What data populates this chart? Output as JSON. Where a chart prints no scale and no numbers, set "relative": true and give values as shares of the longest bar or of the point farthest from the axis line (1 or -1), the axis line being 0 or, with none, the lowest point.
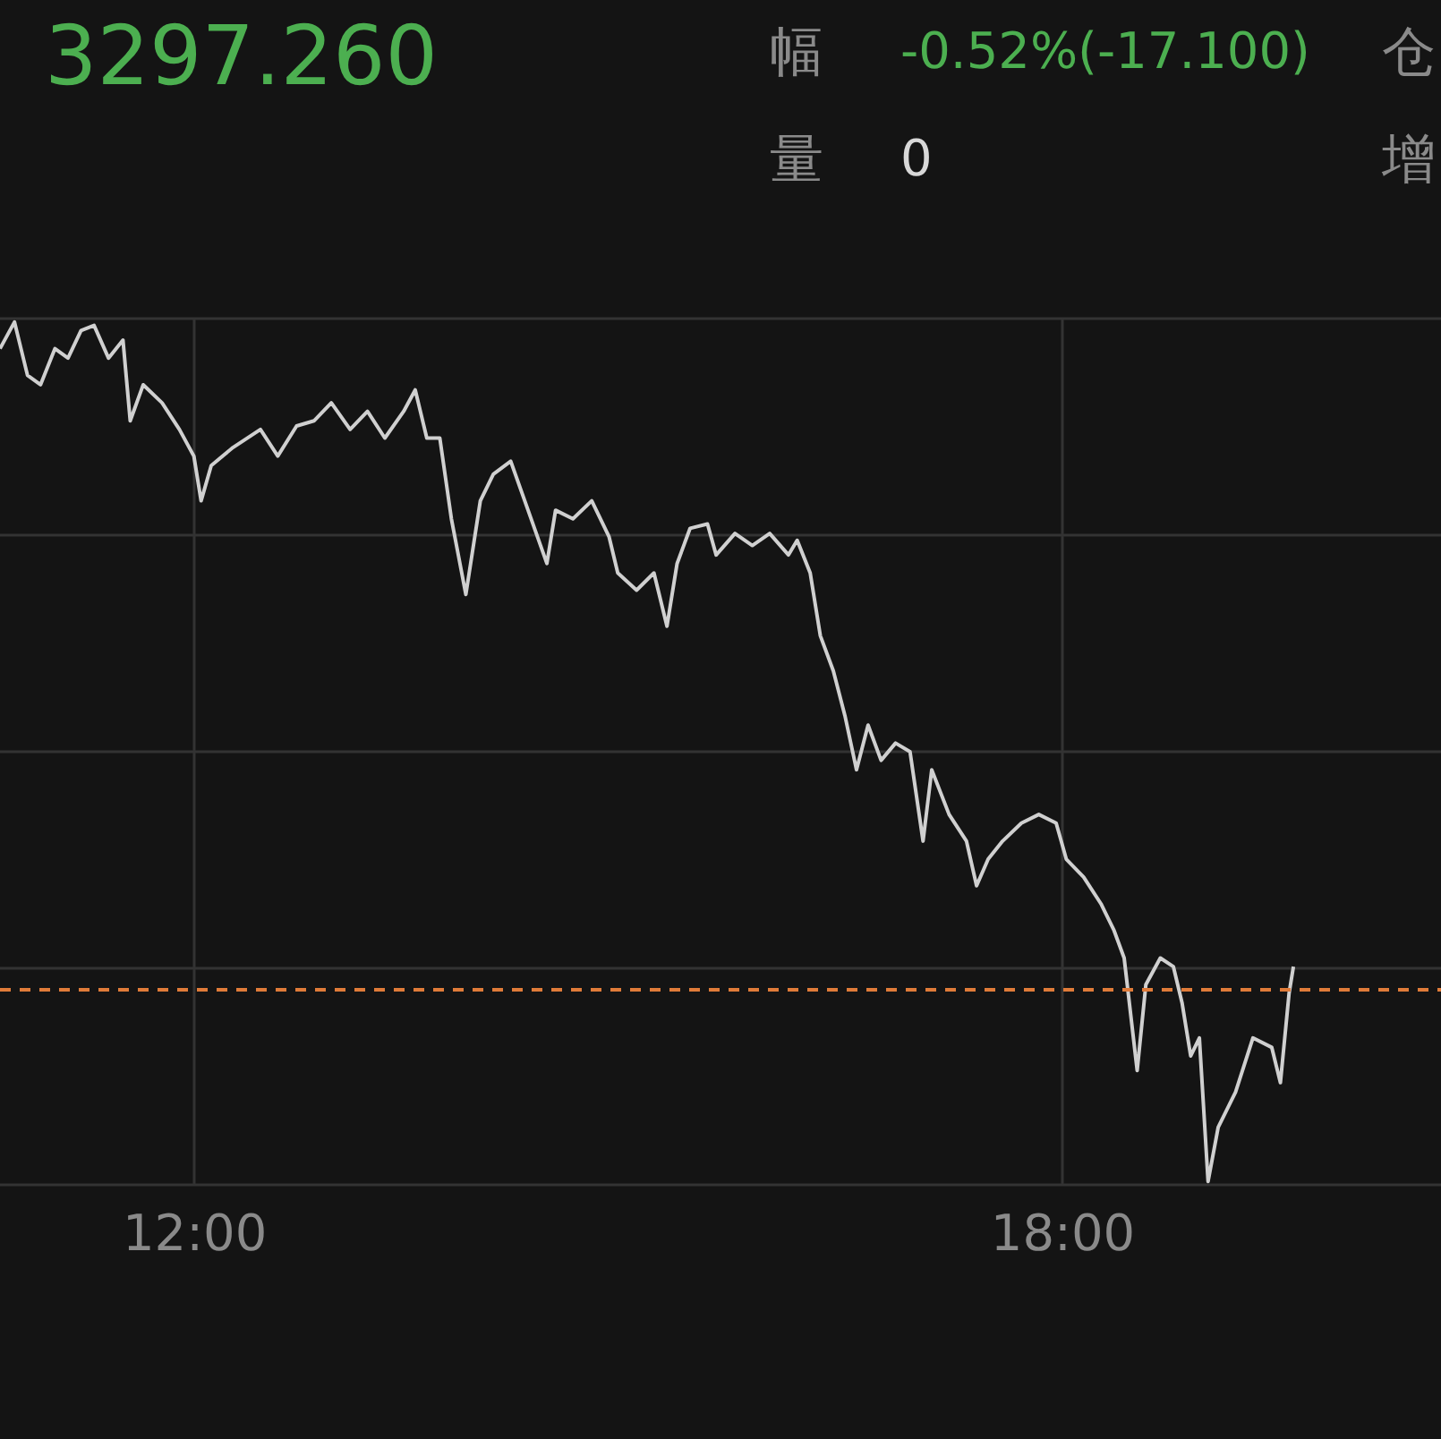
{
  "chart_data": {
    "type": "line",
    "relative": true,
    "grid": true,
    "marker": "none",
    "line_style": "solid",
    "annotations": [
      "3297.260",
      "幅",
      "-0.52%(-17.100)",
      "仓",
      "量",
      "0",
      "增"
    ],
    "xlim": [
      10.66,
      20.62
    ],
    "xticks": [
      {
        "value": 12,
        "label": "12:00"
      },
      {
        "value": 18,
        "label": "18:00"
      }
    ],
    "ref_lines": [
      {
        "axis": "y",
        "value": 0.223,
        "color": "#e07b39",
        "line_style": "dashed"
      }
    ],
    "series": [
      {
        "color": "#d0d0d0",
        "x": [
          10.66,
          10.76,
          10.85,
          10.94,
          11.04,
          11.13,
          11.22,
          11.31,
          11.41,
          11.51,
          11.56,
          11.65,
          11.78,
          11.9,
          12.0,
          12.05,
          12.12,
          12.27,
          12.46,
          12.58,
          12.71,
          12.83,
          12.95,
          13.08,
          13.2,
          13.32,
          13.45,
          13.53,
          13.61,
          13.7,
          13.78,
          13.88,
          13.98,
          14.07,
          14.19,
          14.31,
          14.44,
          14.5,
          14.62,
          14.75,
          14.87,
          14.93,
          15.06,
          15.18,
          15.27,
          15.34,
          15.43,
          15.55,
          15.61,
          15.74,
          15.86,
          15.98,
          16.11,
          16.17,
          16.26,
          16.33,
          16.42,
          16.5,
          16.58,
          16.66,
          16.75,
          16.85,
          16.95,
          17.04,
          17.1,
          17.22,
          17.34,
          17.41,
          17.49,
          17.59,
          17.72,
          17.84,
          17.96,
          18.03,
          18.15,
          18.27,
          18.36,
          18.43,
          18.52,
          18.58,
          18.68,
          18.77,
          18.83,
          18.89,
          18.95,
          19.01,
          19.08,
          19.2,
          19.32,
          19.45,
          19.51,
          19.57,
          19.6
        ],
        "values": [
          0.969,
          1,
          0.938,
          0.927,
          0.969,
          0.958,
          0.99,
          0.996,
          0.958,
          0.979,
          0.885,
          0.927,
          0.906,
          0.875,
          0.844,
          0.792,
          0.833,
          0.854,
          0.875,
          0.844,
          0.879,
          0.885,
          0.906,
          0.875,
          0.896,
          0.865,
          0.896,
          0.921,
          0.865,
          0.865,
          0.771,
          0.683,
          0.792,
          0.823,
          0.838,
          0.781,
          0.719,
          0.781,
          0.771,
          0.792,
          0.75,
          0.708,
          0.688,
          0.708,
          0.646,
          0.719,
          0.76,
          0.765,
          0.729,
          0.754,
          0.74,
          0.754,
          0.729,
          0.746,
          0.708,
          0.635,
          0.594,
          0.542,
          0.479,
          0.531,
          0.49,
          0.51,
          0.5,
          0.396,
          0.479,
          0.427,
          0.396,
          0.344,
          0.375,
          0.396,
          0.417,
          0.427,
          0.417,
          0.375,
          0.354,
          0.323,
          0.292,
          0.26,
          0.129,
          0.229,
          0.26,
          0.25,
          0.208,
          0.146,
          0.167,
          0,
          0.063,
          0.104,
          0.167,
          0.156,
          0.115,
          0.219,
          0.25
        ]
      }
    ]
  }
}
